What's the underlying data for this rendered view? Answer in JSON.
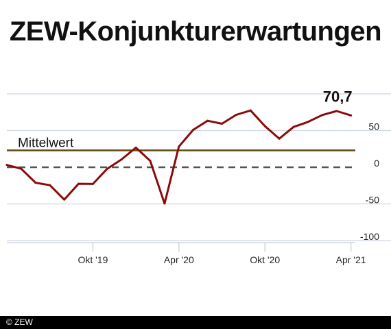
{
  "chart_data": {
    "type": "line",
    "title": "ZEW-Konjunkturerwartungen",
    "xlabel": "",
    "ylabel": "",
    "x_ticks": [
      "Okt '19",
      "Apr '20",
      "Okt '20",
      "Apr '21"
    ],
    "y_ticks": [
      50,
      0,
      -50,
      -100
    ],
    "ylim": [
      -110,
      100
    ],
    "x": [
      "Apr '19",
      "Mai '19",
      "Jun '19",
      "Jul '19",
      "Aug '19",
      "Sep '19",
      "Okt '19",
      "Nov '19",
      "Dez '19",
      "Jan '20",
      "Feb '20",
      "Mär '20",
      "Apr '20",
      "Mai '20",
      "Jun '20",
      "Jul '20",
      "Aug '20",
      "Sep '20",
      "Okt '20",
      "Nov '20",
      "Dez '20",
      "Jan '21",
      "Feb '21",
      "Mär '21",
      "Apr '21"
    ],
    "values": [
      3.1,
      -2.1,
      -21.1,
      -24.5,
      -44.1,
      -22.5,
      -22.8,
      -2.1,
      10.7,
      26.7,
      8.7,
      -49.5,
      28.2,
      51.0,
      63.4,
      59.3,
      71.5,
      77.4,
      56.1,
      39.0,
      55.0,
      61.8,
      71.2,
      76.6,
      70.7
    ],
    "end_label": "70,7",
    "mean_line": {
      "label": "Mittelwert",
      "value": 23
    },
    "zero_line": {
      "value": 0
    },
    "colors": {
      "series": "#8b0a0a",
      "mean": "#5f4a11",
      "zero": "#555555",
      "grid": "#cfd6e0",
      "text": "#222222"
    },
    "grid": true
  },
  "footer": {
    "copyright": "© ZEW"
  }
}
